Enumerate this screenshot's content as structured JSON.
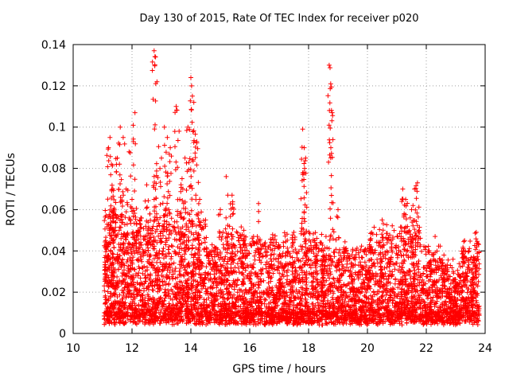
{
  "chart_data": {
    "type": "scatter",
    "title": "Day 130 of 2015, Rate Of TEC Index for receiver p020",
    "xlabel": "GPS time / hours",
    "ylabel": "ROTI / TECUs",
    "xlim": [
      10,
      24
    ],
    "ylim": [
      0,
      0.14
    ],
    "x_ticks": [
      "10",
      "12",
      "14",
      "16",
      "18",
      "20",
      "22",
      "24"
    ],
    "y_ticks": [
      "0",
      "0.02",
      "0.04",
      "0.06",
      "0.08",
      "0.1",
      "0.12",
      "0.14"
    ],
    "grid": true,
    "marker": "+",
    "color": "#ff0000",
    "series": [
      {
        "name": "ROTI",
        "x": [
          11.1,
          11.2,
          11.25,
          11.3,
          11.35,
          11.4,
          11.5,
          11.6,
          11.7,
          11.8,
          11.9,
          12.0,
          12.1,
          12.2,
          12.3,
          12.5,
          12.75,
          12.8,
          12.85,
          13.0,
          13.1,
          13.2,
          13.3,
          13.5,
          13.6,
          13.7,
          13.8,
          13.9,
          14.0,
          14.05,
          14.1,
          14.2,
          14.3,
          14.5,
          15.0,
          15.2,
          15.4,
          15.8,
          16.3,
          17.0,
          17.5,
          17.8,
          17.85,
          17.9,
          18.2,
          18.5,
          18.7,
          18.75,
          18.8,
          19.0,
          19.5,
          20.1,
          20.5,
          20.8,
          21.2,
          21.3,
          21.5,
          21.6,
          21.7,
          22.3,
          22.6,
          23.0,
          23.3,
          23.6,
          23.7
        ],
        "values": [
          0.045,
          0.09,
          0.095,
          0.082,
          0.07,
          0.06,
          0.085,
          0.1,
          0.095,
          0.07,
          0.088,
          0.065,
          0.107,
          0.05,
          0.056,
          0.072,
          0.137,
          0.134,
          0.122,
          0.085,
          0.1,
          0.095,
          0.09,
          0.11,
          0.098,
          0.075,
          0.085,
          0.1,
          0.124,
          0.115,
          0.112,
          0.093,
          0.065,
          0.055,
          0.06,
          0.076,
          0.067,
          0.05,
          0.063,
          0.042,
          0.049,
          0.099,
          0.09,
          0.085,
          0.045,
          0.04,
          0.13,
          0.121,
          0.107,
          0.06,
          0.04,
          0.045,
          0.055,
          0.045,
          0.07,
          0.065,
          0.06,
          0.07,
          0.073,
          0.047,
          0.038,
          0.025,
          0.045,
          0.036,
          0.049
        ]
      }
    ]
  }
}
